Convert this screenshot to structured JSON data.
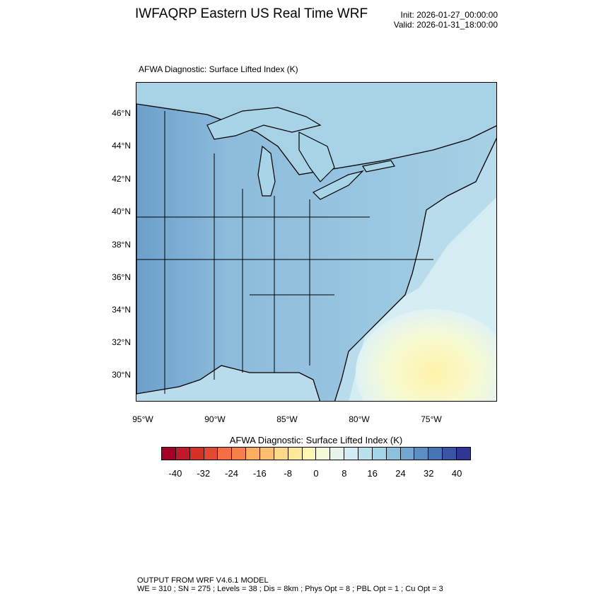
{
  "header": {
    "title": "IWFAQRP Eastern US Real Time WRF",
    "init": "Init: 2026-01-27_00:00:00",
    "valid": "Valid: 2026-01-31_18:00:00"
  },
  "map": {
    "subtitle": "AFWA Diagnostic: Surface Lifted Index   (K)",
    "lat_labels": [
      "46°N",
      "44°N",
      "42°N",
      "40°N",
      "38°N",
      "36°N",
      "34°N",
      "32°N",
      "30°N"
    ],
    "lon_labels": [
      "95°W",
      "90°W",
      "85°W",
      "80°W",
      "75°W"
    ],
    "colors": {
      "land": "#8fbfdc",
      "water": "#b5dbea",
      "stable_west": "#6a9fcb",
      "warm": "#fff7b3"
    }
  },
  "colorbar": {
    "title": "AFWA Diagnostic: Surface Lifted Index  (K)",
    "labels": [
      "-40",
      "-32",
      "-24",
      "-16",
      "-8",
      "0",
      "8",
      "16",
      "24",
      "32",
      "40"
    ],
    "colors": [
      "#a50026",
      "#be1a2a",
      "#d73027",
      "#e34a33",
      "#f46d43",
      "#f67f4b",
      "#fdae61",
      "#fdbf6f",
      "#fed98a",
      "#fee99a",
      "#fff7b3",
      "#f3fad6",
      "#e6f5ec",
      "#d1ecf4",
      "#b9e0ed",
      "#a3d3e6",
      "#8bc1dc",
      "#72a8cf",
      "#5b8fc4",
      "#4575b4",
      "#3b54a4",
      "#313695"
    ]
  },
  "footer": {
    "line1": "OUTPUT FROM WRF V4.6.1 MODEL",
    "line2": "WE = 310 ; SN = 275 ; Levels = 38 ; Dis = 8km ; Phys Opt = 8 ; PBL Opt = 1 ; Cu Opt = 3"
  }
}
